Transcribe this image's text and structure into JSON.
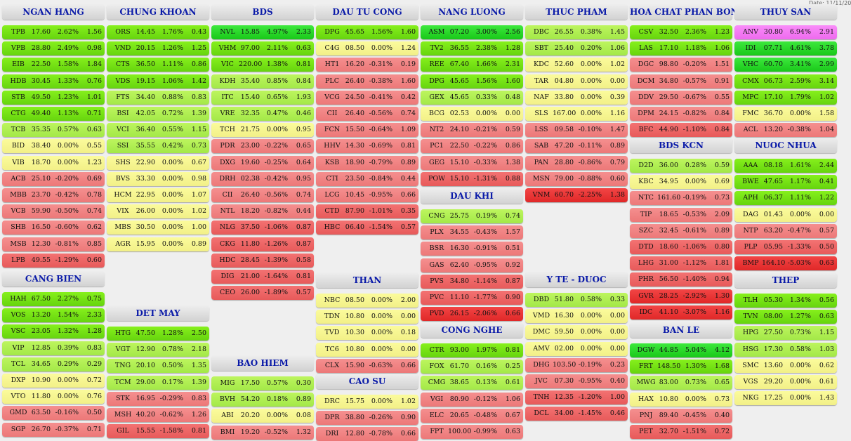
{
  "date_text": "Date: 11/11/20",
  "sections": [
    {
      "title": "NGAN HANG",
      "rows": [
        [
          "TPB",
          "17.60",
          "2.62%",
          "1.56"
        ],
        [
          "VPB",
          "28.80",
          "2.49%",
          "0.98"
        ],
        [
          "EIB",
          "22.50",
          "1.58%",
          "1.84"
        ],
        [
          "HDB",
          "30.45",
          "1.33%",
          "0.76"
        ],
        [
          "STB",
          "49.50",
          "1.23%",
          "1.01"
        ],
        [
          "CTG",
          "49.40",
          "1.13%",
          "0.71"
        ],
        [
          "TCB",
          "35.35",
          "0.57%",
          "0.63"
        ],
        [
          "BID",
          "38.40",
          "0.00%",
          "0.55"
        ],
        [
          "VIB",
          "18.70",
          "0.00%",
          "1.23"
        ],
        [
          "ACB",
          "25.10",
          "-0.20%",
          "0.69"
        ],
        [
          "MBB",
          "23.70",
          "-0.42%",
          "0.78"
        ],
        [
          "VCB",
          "59.90",
          "-0.50%",
          "0.74"
        ],
        [
          "SHB",
          "16.50",
          "-0.60%",
          "0.62"
        ],
        [
          "MSB",
          "12.30",
          "-0.81%",
          "0.85"
        ],
        [
          "LPB",
          "49.55",
          "-1.29%",
          "0.60"
        ]
      ]
    },
    {
      "title": "CANG BIEN",
      "rows": [
        [
          "HAH",
          "67.50",
          "2.27%",
          "0.75"
        ],
        [
          "VOS",
          "13.20",
          "1.54%",
          "2.33"
        ],
        [
          "VSC",
          "23.05",
          "1.32%",
          "1.28"
        ],
        [
          "VIP",
          "12.85",
          "0.39%",
          "0.83"
        ],
        [
          "TCL",
          "34.65",
          "0.29%",
          "0.29"
        ],
        [
          "DXP",
          "10.90",
          "0.00%",
          "0.72"
        ],
        [
          "VTO",
          "11.80",
          "0.00%",
          "0.76"
        ],
        [
          "GMD",
          "63.50",
          "-0.16%",
          "0.50"
        ],
        [
          "SGP",
          "26.70",
          "-0.37%",
          "0.71"
        ]
      ]
    },
    {
      "title": "CHUNG KHOAN",
      "rows": [
        [
          "ORS",
          "14.45",
          "1.76%",
          "0.43"
        ],
        [
          "VND",
          "20.15",
          "1.26%",
          "1.25"
        ],
        [
          "CTS",
          "36.50",
          "1.11%",
          "0.86"
        ],
        [
          "VDS",
          "19.15",
          "1.06%",
          "1.42"
        ],
        [
          "FTS",
          "34.40",
          "0.88%",
          "0.83"
        ],
        [
          "BSI",
          "42.05",
          "0.72%",
          "1.39"
        ],
        [
          "VCI",
          "36.40",
          "0.55%",
          "1.15"
        ],
        [
          "SSI",
          "35.55",
          "0.42%",
          "0.73"
        ],
        [
          "SHS",
          "22.90",
          "0.00%",
          "0.67"
        ],
        [
          "BVS",
          "33.30",
          "0.00%",
          "0.98"
        ],
        [
          "HCM",
          "22.95",
          "0.00%",
          "1.07"
        ],
        [
          "VIX",
          "26.00",
          "0.00%",
          "1.02"
        ],
        [
          "MBS",
          "30.50",
          "0.00%",
          "1.00"
        ],
        [
          "AGR",
          "15.95",
          "0.00%",
          "0.89"
        ]
      ]
    },
    {
      "title": "DET MAY",
      "rows": [
        [
          "HTG",
          "47.50",
          "1.28%",
          "2.50"
        ],
        [
          "VGT",
          "12.90",
          "0.78%",
          "2.18"
        ],
        [
          "TNG",
          "20.10",
          "0.50%",
          "1.35"
        ],
        [
          "TCM",
          "29.00",
          "0.17%",
          "1.39"
        ],
        [
          "STK",
          "16.95",
          "-0.29%",
          "0.83"
        ],
        [
          "MSH",
          "40.20",
          "-0.62%",
          "1.26"
        ],
        [
          "GIL",
          "15.55",
          "-1.58%",
          "0.81"
        ]
      ]
    },
    {
      "title": "BDS",
      "rows": [
        [
          "NVL",
          "15.85",
          "4.97%",
          "2.33"
        ],
        [
          "VHM",
          "97.00",
          "2.11%",
          "0.63"
        ],
        [
          "VIC",
          "220.00",
          "1.38%",
          "0.81"
        ],
        [
          "KDH",
          "35.40",
          "0.85%",
          "0.84"
        ],
        [
          "ITC",
          "15.40",
          "0.65%",
          "1.93"
        ],
        [
          "VRE",
          "32.35",
          "0.47%",
          "0.46"
        ],
        [
          "TCH",
          "21.75",
          "0.00%",
          "0.95"
        ],
        [
          "PDR",
          "23.00",
          "-0.22%",
          "0.65"
        ],
        [
          "DXG",
          "19.60",
          "-0.25%",
          "0.64"
        ],
        [
          "DRH",
          "02.38",
          "-0.42%",
          "0.95"
        ],
        [
          "CII",
          "26.40",
          "-0.56%",
          "0.74"
        ],
        [
          "NTL",
          "18.20",
          "-0.82%",
          "0.44"
        ],
        [
          "NLG",
          "37.50",
          "-1.06%",
          "0.87"
        ],
        [
          "CKG",
          "11.80",
          "-1.26%",
          "0.87"
        ],
        [
          "HDC",
          "28.45",
          "-1.39%",
          "0.58"
        ],
        [
          "DIG",
          "21.00",
          "-1.64%",
          "0.81"
        ],
        [
          "CEO",
          "26.00",
          "-1.89%",
          "0.57"
        ]
      ]
    },
    {
      "title": "BAO HIEM",
      "rows": [
        [
          "MIG",
          "17.50",
          "0.57%",
          "0.30"
        ],
        [
          "BVH",
          "54.20",
          "0.18%",
          "0.89"
        ],
        [
          "ABI",
          "20.20",
          "0.00%",
          "0.08"
        ],
        [
          "BMI",
          "19.20",
          "-0.52%",
          "1.32"
        ]
      ]
    },
    {
      "title": "DAU TU CONG",
      "rows": [
        [
          "DPG",
          "45.65",
          "1.56%",
          "1.60"
        ],
        [
          "C4G",
          "08.50",
          "0.00%",
          "1.24"
        ],
        [
          "HT1",
          "16.20",
          "-0.31%",
          "0.19"
        ],
        [
          "PLC",
          "26.40",
          "-0.38%",
          "1.60"
        ],
        [
          "VCG",
          "24.50",
          "-0.41%",
          "0.42"
        ],
        [
          "CII",
          "26.40",
          "-0.56%",
          "0.74"
        ],
        [
          "FCN",
          "15.50",
          "-0.64%",
          "1.09"
        ],
        [
          "HHV",
          "14.30",
          "-0.69%",
          "0.81"
        ],
        [
          "KSB",
          "18.90",
          "-0.79%",
          "0.89"
        ],
        [
          "CTI",
          "23.50",
          "-0.84%",
          "0.44"
        ],
        [
          "LCG",
          "10.45",
          "-0.95%",
          "0.66"
        ],
        [
          "CTD",
          "87.90",
          "-1.01%",
          "0.35"
        ],
        [
          "HBC",
          "06.40",
          "-1.54%",
          "0.57"
        ]
      ]
    },
    {
      "title": "THAN",
      "rows": [
        [
          "NBC",
          "08.50",
          "0.00%",
          "2.00"
        ],
        [
          "TDN",
          "10.80",
          "0.00%",
          "0.00"
        ],
        [
          "TVD",
          "10.30",
          "0.00%",
          "0.18"
        ],
        [
          "TC6",
          "10.80",
          "0.00%",
          "0.00"
        ],
        [
          "CLX",
          "15.90",
          "-0.63%",
          "0.66"
        ]
      ]
    },
    {
      "title": "CAO SU",
      "rows": [
        [
          "DRC",
          "15.75",
          "0.00%",
          "1.02"
        ],
        [
          "DPR",
          "38.80",
          "-0.26%",
          "0.90"
        ],
        [
          "DRI",
          "12.80",
          "-0.78%",
          "0.66"
        ]
      ]
    },
    {
      "title": "NANG LUONG",
      "rows": [
        [
          "ASM",
          "07.20",
          "3.00%",
          "2.56"
        ],
        [
          "TV2",
          "36.55",
          "2.38%",
          "1.28"
        ],
        [
          "REE",
          "67.40",
          "1.66%",
          "2.31"
        ],
        [
          "DPG",
          "45.65",
          "1.56%",
          "1.60"
        ],
        [
          "GEX",
          "45.65",
          "0.33%",
          "0.48"
        ],
        [
          "BCG",
          "02.53",
          "0.00%",
          "0.00"
        ],
        [
          "NT2",
          "24.10",
          "-0.21%",
          "0.59"
        ],
        [
          "PC1",
          "22.50",
          "-0.22%",
          "0.86"
        ],
        [
          "GEG",
          "15.10",
          "-0.33%",
          "1.38"
        ],
        [
          "POW",
          "15.10",
          "-1.31%",
          "0.88"
        ]
      ]
    },
    {
      "title": "DAU KHI",
      "rows": [
        [
          "CNG",
          "25.75",
          "0.19%",
          "0.74"
        ],
        [
          "PLX",
          "34.55",
          "-0.43%",
          "1.57"
        ],
        [
          "BSR",
          "16.30",
          "-0.91%",
          "0.51"
        ],
        [
          "GAS",
          "62.40",
          "-0.95%",
          "0.92"
        ],
        [
          "PVS",
          "34.80",
          "-1.14%",
          "0.87"
        ],
        [
          "PVC",
          "11.10",
          "-1.77%",
          "0.90"
        ],
        [
          "PVD",
          "26.15",
          "-2.06%",
          "0.66"
        ]
      ]
    },
    {
      "title": "CONG NGHE",
      "rows": [
        [
          "CTR",
          "93.00",
          "1.97%",
          "0.81"
        ],
        [
          "FOX",
          "61.70",
          "0.16%",
          "0.25"
        ],
        [
          "CMG",
          "38.65",
          "0.13%",
          "0.61"
        ],
        [
          "VGI",
          "80.90",
          "-0.12%",
          "1.06"
        ],
        [
          "ELC",
          "20.65",
          "-0.48%",
          "0.67"
        ],
        [
          "FPT",
          "100.00",
          "-0.99%",
          "0.63"
        ]
      ]
    },
    {
      "title": "THUC PHAM",
      "rows": [
        [
          "DBC",
          "26.55",
          "0.38%",
          "1.45"
        ],
        [
          "SBT",
          "25.40",
          "0.20%",
          "1.06"
        ],
        [
          "KDC",
          "52.60",
          "0.00%",
          "1.02"
        ],
        [
          "TAR",
          "04.80",
          "0.00%",
          "0.00"
        ],
        [
          "NAF",
          "33.80",
          "0.00%",
          "0.39"
        ],
        [
          "SLS",
          "167.00",
          "0.00%",
          "1.16"
        ],
        [
          "LSS",
          "09.58",
          "-0.10%",
          "1.47"
        ],
        [
          "SAB",
          "47.20",
          "-0.11%",
          "0.89"
        ],
        [
          "PAN",
          "28.80",
          "-0.86%",
          "0.79"
        ],
        [
          "MSN",
          "79.00",
          "-0.88%",
          "0.60"
        ],
        [
          "VNM",
          "60.70",
          "-2.25%",
          "1.38"
        ]
      ]
    },
    {
      "title": "Y TE - DUOC",
      "rows": [
        [
          "DBD",
          "51.80",
          "0.58%",
          "0.33"
        ],
        [
          "VMD",
          "16.30",
          "0.00%",
          "0.00"
        ],
        [
          "DMC",
          "59.50",
          "0.00%",
          "0.00"
        ],
        [
          "AMV",
          "02.00",
          "0.00%",
          "0.00"
        ],
        [
          "DHG",
          "103.50",
          "-0.19%",
          "0.23"
        ],
        [
          "JVC",
          "07.30",
          "-0.95%",
          "0.40"
        ],
        [
          "TNH",
          "12.35",
          "-1.20%",
          "1.00"
        ],
        [
          "DCL",
          "34.00",
          "-1.45%",
          "0.46"
        ]
      ]
    },
    {
      "title": "HOA CHAT PHAN BON",
      "rows": [
        [
          "CSV",
          "32.50",
          "2.36%",
          "1.23"
        ],
        [
          "LAS",
          "17.10",
          "1.18%",
          "1.06"
        ],
        [
          "DGC",
          "98.80",
          "-0.20%",
          "1.51"
        ],
        [
          "DCM",
          "34.80",
          "-0.57%",
          "0.91"
        ],
        [
          "DDV",
          "29.50",
          "-0.67%",
          "0.55"
        ],
        [
          "DPM",
          "24.15",
          "-0.82%",
          "0.84"
        ],
        [
          "BFC",
          "44.90",
          "-1.10%",
          "0.84"
        ]
      ]
    },
    {
      "title": "BDS KCN",
      "rows": [
        [
          "D2D",
          "36.00",
          "0.28%",
          "0.59"
        ],
        [
          "KBC",
          "34.95",
          "0.00%",
          "0.69"
        ],
        [
          "NTC",
          "161.60",
          "-0.19%",
          "0.73"
        ],
        [
          "TIP",
          "18.65",
          "-0.53%",
          "2.09"
        ],
        [
          "SZC",
          "32.45",
          "-0.61%",
          "0.89"
        ],
        [
          "DTD",
          "18.60",
          "-1.06%",
          "0.80"
        ],
        [
          "LHG",
          "31.00",
          "-1.12%",
          "1.81"
        ],
        [
          "PHR",
          "56.50",
          "-1.40%",
          "0.94"
        ],
        [
          "GVR",
          "28.25",
          "-2.92%",
          "1.30"
        ],
        [
          "IDC",
          "41.10",
          "-3.07%",
          "1.16"
        ]
      ]
    },
    {
      "title": "BAN LE",
      "rows": [
        [
          "DGW",
          "44.85",
          "5.04%",
          "4.12"
        ],
        [
          "FRT",
          "148.50",
          "1.30%",
          "1.68"
        ],
        [
          "MWG",
          "83.00",
          "0.73%",
          "0.65"
        ],
        [
          "HAX",
          "10.80",
          "0.00%",
          "0.73"
        ],
        [
          "PNJ",
          "89.40",
          "-0.45%",
          "0.40"
        ],
        [
          "PET",
          "32.70",
          "-1.51%",
          "0.72"
        ]
      ]
    },
    {
      "title": "THUY SAN",
      "rows": [
        [
          "ANV",
          "30.80",
          "6.94%",
          "2.91"
        ],
        [
          "IDI",
          "07.71",
          "4.61%",
          "3.78"
        ],
        [
          "VHC",
          "60.70",
          "3.41%",
          "2.99"
        ],
        [
          "CMX",
          "06.73",
          "2.59%",
          "3.14"
        ],
        [
          "MPC",
          "17.10",
          "1.79%",
          "1.02"
        ],
        [
          "FMC",
          "36.70",
          "0.00%",
          "1.58"
        ],
        [
          "ACL",
          "13.20",
          "-0.38%",
          "1.04"
        ]
      ]
    },
    {
      "title": "NUOC NHUA",
      "rows": [
        [
          "AAA",
          "08.18",
          "1.61%",
          "2.44"
        ],
        [
          "BWE",
          "47.65",
          "1.17%",
          "0.41"
        ],
        [
          "APH",
          "06.37",
          "1.11%",
          "1.22"
        ],
        [
          "DAG",
          "01.43",
          "0.00%",
          "0.00"
        ],
        [
          "NTP",
          "63.20",
          "-0.47%",
          "0.57"
        ],
        [
          "PLP",
          "05.95",
          "-1.33%",
          "0.50"
        ],
        [
          "BMP",
          "164.10",
          "-5.03%",
          "0.63"
        ]
      ]
    },
    {
      "title": "THEP",
      "rows": [
        [
          "TLH",
          "05.30",
          "1.34%",
          "0.56"
        ],
        [
          "TVN",
          "08.00",
          "1.27%",
          "0.63"
        ],
        [
          "HPG",
          "27.50",
          "0.73%",
          "1.15"
        ],
        [
          "HSG",
          "17.30",
          "0.58%",
          "1.03"
        ],
        [
          "SMC",
          "13.60",
          "0.00%",
          "0.62"
        ],
        [
          "VGS",
          "29.20",
          "0.00%",
          "0.61"
        ],
        [
          "NKG",
          "17.25",
          "0.00%",
          "1.43"
        ]
      ]
    }
  ]
}
